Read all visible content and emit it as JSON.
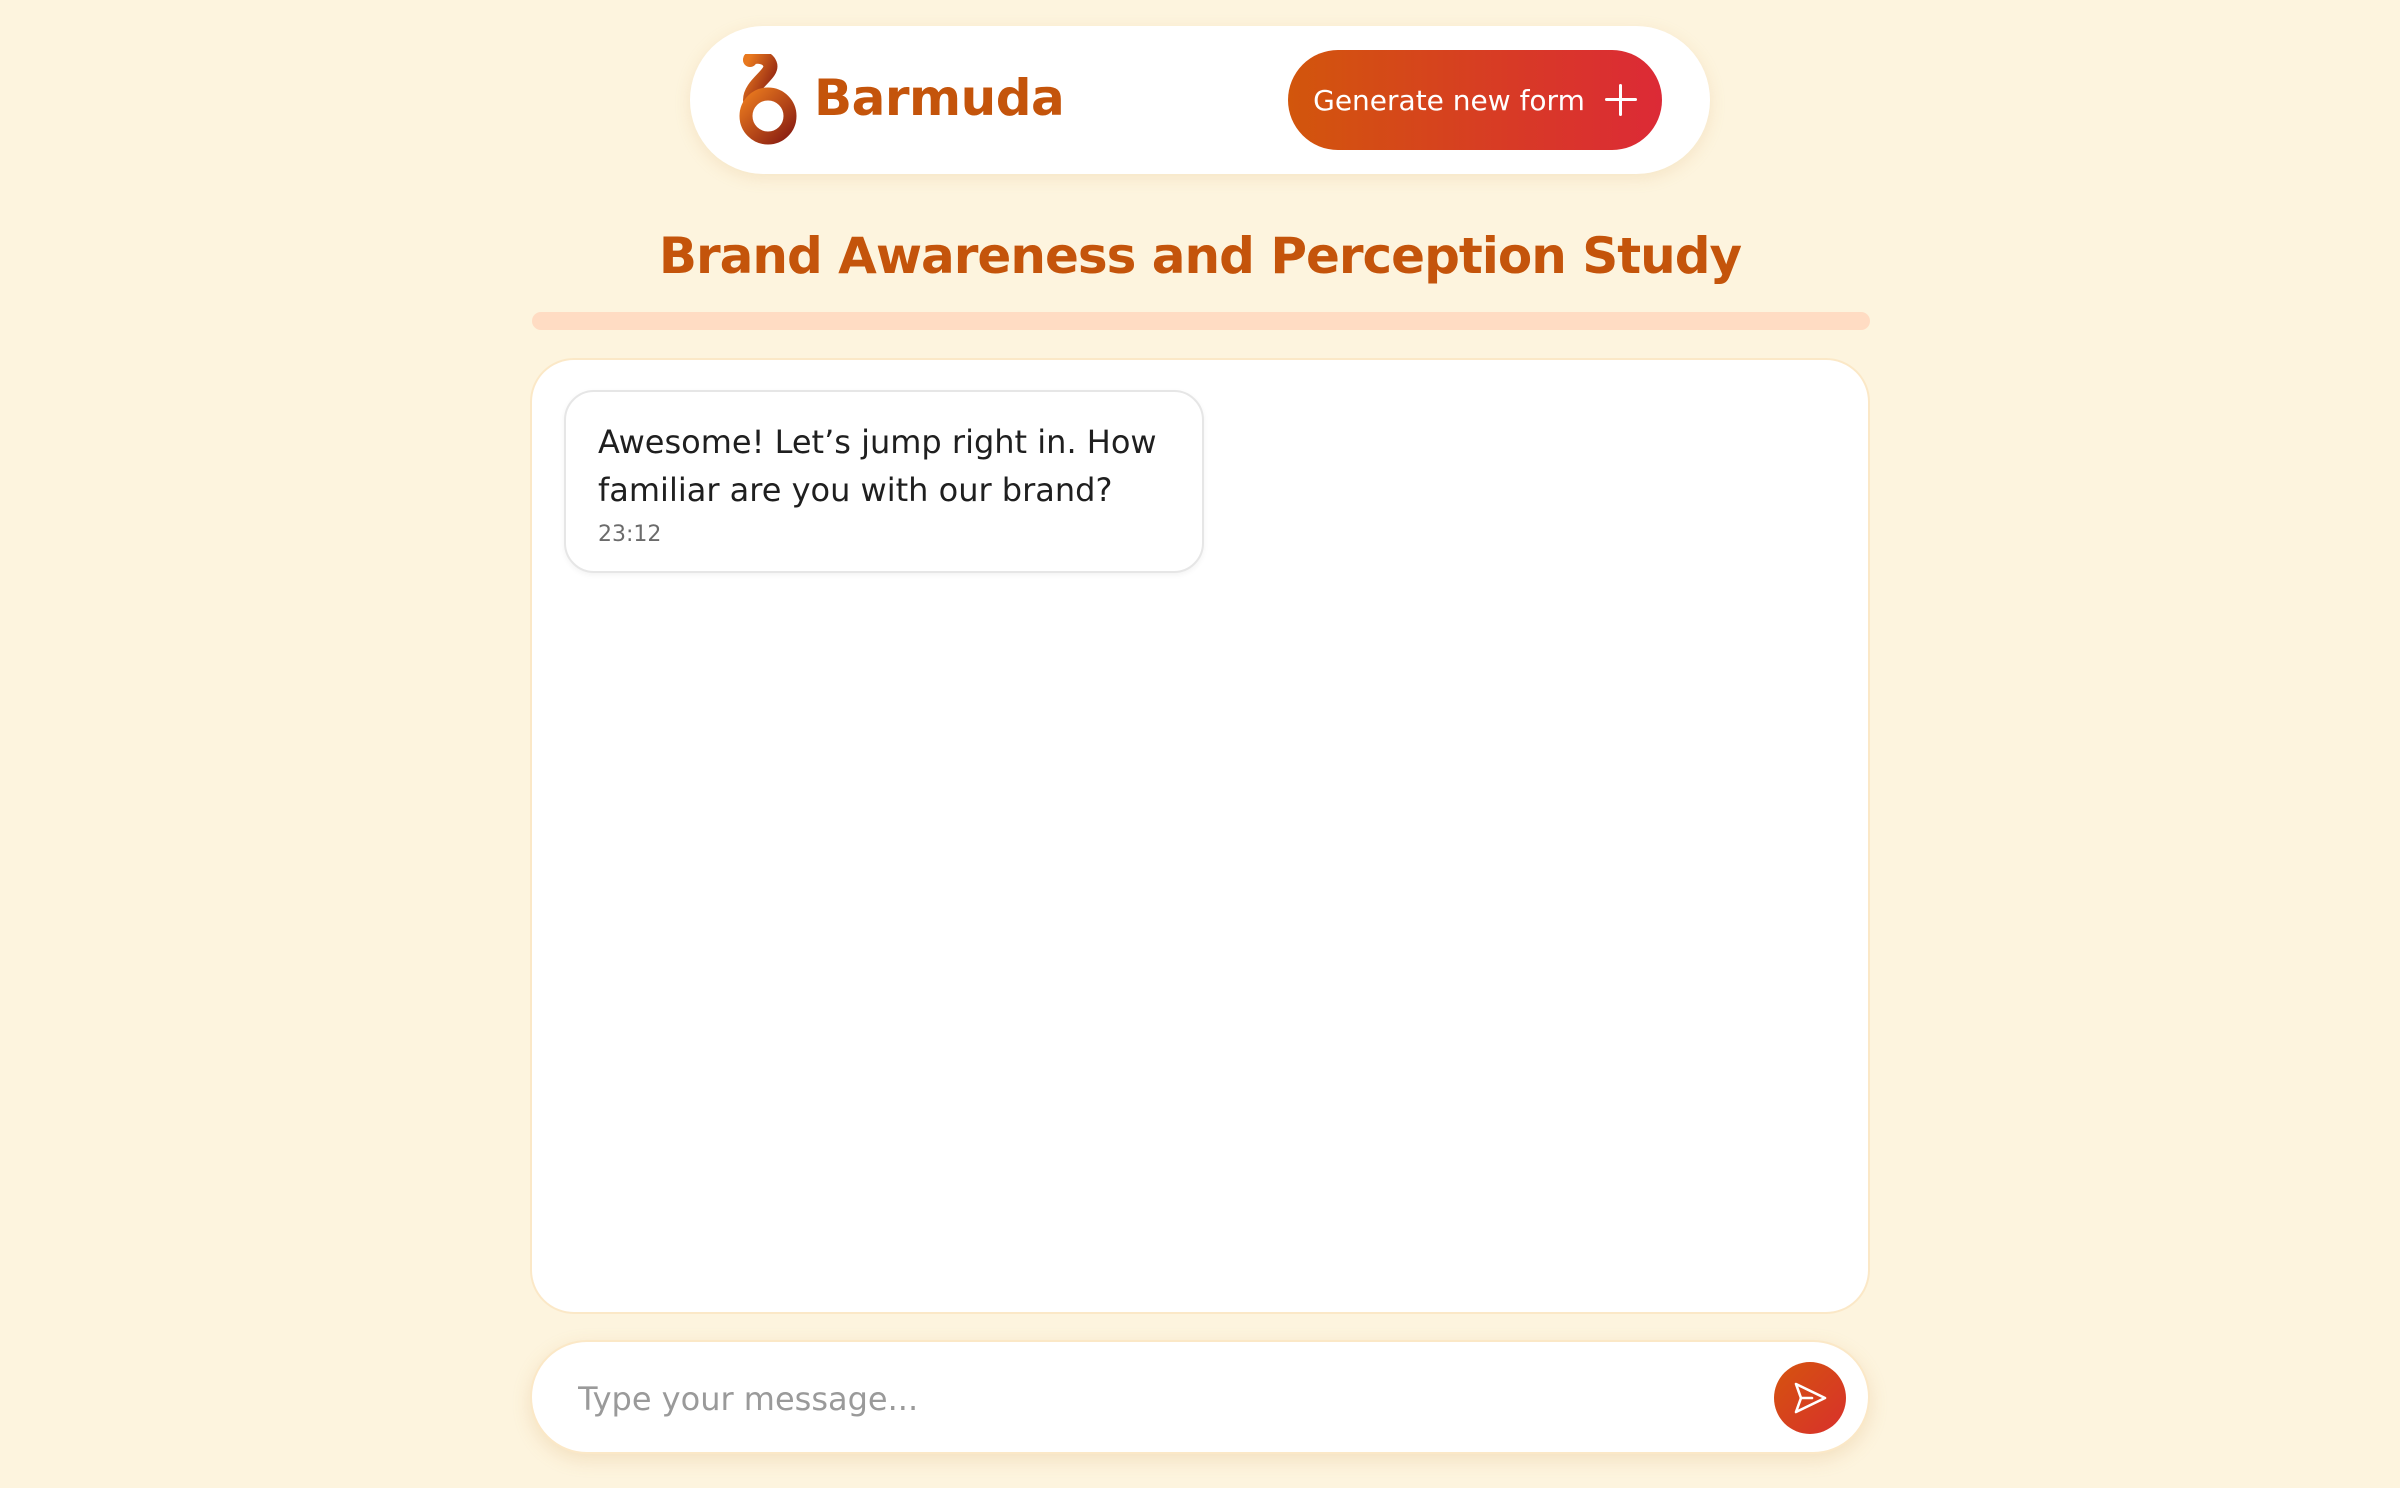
{
  "header": {
    "brand_name": "Barmuda",
    "generate_button_label": "Generate new form"
  },
  "form": {
    "title": "Brand Awareness and Perception Study",
    "progress_percent": 0
  },
  "chat": {
    "messages": [
      {
        "text": "Awesome! Let’s jump right in. How familiar are you with our brand?",
        "time": "23:12"
      }
    ]
  },
  "composer": {
    "placeholder": "Type your message..."
  },
  "icons": {
    "logo": "barmuda-logo-icon",
    "generate": "plus-icon",
    "send": "send-icon"
  },
  "colors": {
    "background": "#fdf4de",
    "brand": "#c4540b",
    "accent_gradient_start": "#d2560c",
    "accent_gradient_end": "#dc2a36",
    "progress_track": "#ffdcc3"
  }
}
